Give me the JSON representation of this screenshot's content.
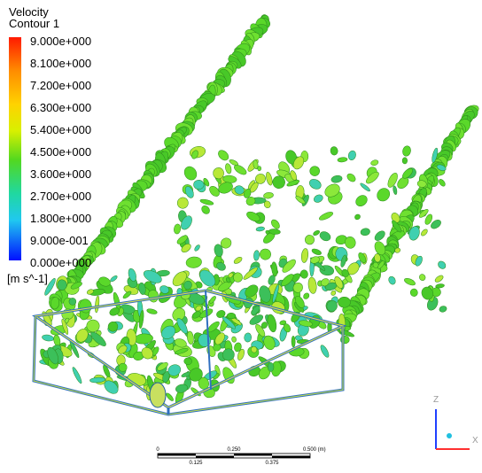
{
  "legend": {
    "title": "Velocity",
    "subtitle": "Contour 1",
    "labels": [
      "9.000e+000",
      "8.100e+000",
      "7.200e+000",
      "6.300e+000",
      "5.400e+000",
      "4.500e+000",
      "3.600e+000",
      "2.700e+000",
      "1.800e+000",
      "9.000e-001",
      "0.000e+000"
    ],
    "unit": "[m s^-1]"
  },
  "scale_bar": {
    "top_labels": [
      "0",
      "0.250",
      "0.500 (m)"
    ],
    "bottom_labels": [
      "0.125",
      "0.375"
    ]
  },
  "axes": {
    "labels": [
      "Z",
      "X"
    ]
  }
}
